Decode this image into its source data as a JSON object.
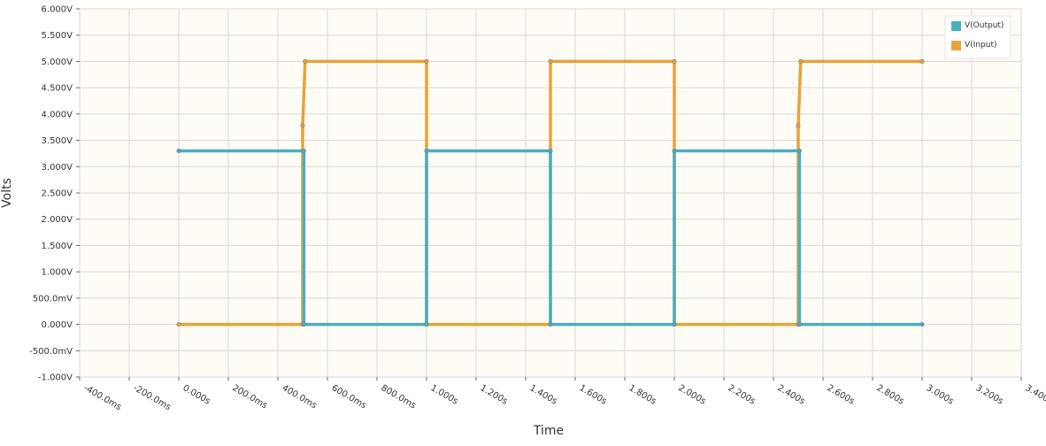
{
  "chart_data": {
    "type": "line",
    "xlabel": "Time",
    "ylabel": "Volts",
    "x_unit": "s",
    "ylim": [
      -1.0,
      6.0
    ],
    "xlim": [
      -0.4,
      3.4
    ],
    "grid": true,
    "legend_position": "top-right",
    "y_ticks": [
      {
        "value": 6.0,
        "label": "6.000V"
      },
      {
        "value": 5.5,
        "label": "5.500V"
      },
      {
        "value": 5.0,
        "label": "5.000V"
      },
      {
        "value": 4.5,
        "label": "4.500V"
      },
      {
        "value": 4.0,
        "label": "4.000V"
      },
      {
        "value": 3.5,
        "label": "3.500V"
      },
      {
        "value": 3.0,
        "label": "3.000V"
      },
      {
        "value": 2.5,
        "label": "2.500V"
      },
      {
        "value": 2.0,
        "label": "2.000V"
      },
      {
        "value": 1.5,
        "label": "1.500V"
      },
      {
        "value": 1.0,
        "label": "1.000V"
      },
      {
        "value": 0.5,
        "label": "500.0mV"
      },
      {
        "value": 0.0,
        "label": "0.000V"
      },
      {
        "value": -0.5,
        "label": "-500.0mV"
      },
      {
        "value": -1.0,
        "label": "-1.000V"
      }
    ],
    "x_ticks": [
      {
        "value": -0.4,
        "label": "-400.0ms"
      },
      {
        "value": -0.2,
        "label": "-200.0ms"
      },
      {
        "value": 0.0,
        "label": "0.000s"
      },
      {
        "value": 0.2,
        "label": "200.0ms"
      },
      {
        "value": 0.4,
        "label": "400.0ms"
      },
      {
        "value": 0.6,
        "label": "600.0ms"
      },
      {
        "value": 0.8,
        "label": "800.0ms"
      },
      {
        "value": 1.0,
        "label": "1.000s"
      },
      {
        "value": 1.2,
        "label": "1.200s"
      },
      {
        "value": 1.4,
        "label": "1.400s"
      },
      {
        "value": 1.6,
        "label": "1.600s"
      },
      {
        "value": 1.8,
        "label": "1.800s"
      },
      {
        "value": 2.0,
        "label": "2.000s"
      },
      {
        "value": 2.2,
        "label": "2.200s"
      },
      {
        "value": 2.4,
        "label": "2.400s"
      },
      {
        "value": 2.6,
        "label": "2.600s"
      },
      {
        "value": 2.8,
        "label": "2.800s"
      },
      {
        "value": 3.0,
        "label": "3.000s"
      },
      {
        "value": 3.2,
        "label": "3.200s"
      },
      {
        "value": 3.4,
        "label": "3.400s"
      }
    ],
    "series": [
      {
        "name": "V(Input)",
        "color": "#e8a33a",
        "points": [
          [
            0.0,
            0.0
          ],
          [
            0.5,
            0.0
          ],
          [
            0.5,
            3.78
          ],
          [
            0.51,
            5.0
          ],
          [
            1.0,
            5.0
          ],
          [
            1.0,
            0.0
          ],
          [
            1.5,
            0.0
          ],
          [
            1.5,
            5.0
          ],
          [
            2.0,
            5.0
          ],
          [
            2.0,
            0.0
          ],
          [
            2.5,
            0.0
          ],
          [
            2.5,
            3.78
          ],
          [
            2.51,
            5.0
          ],
          [
            3.0,
            5.0
          ]
        ]
      },
      {
        "name": "V(Output)",
        "color": "#4aaec0",
        "points": [
          [
            0.0,
            3.3
          ],
          [
            0.505,
            3.3
          ],
          [
            0.505,
            0.0
          ],
          [
            1.0,
            0.0
          ],
          [
            1.0,
            3.3
          ],
          [
            1.5,
            3.3
          ],
          [
            1.5,
            0.0
          ],
          [
            2.0,
            0.0
          ],
          [
            2.0,
            3.3
          ],
          [
            2.505,
            3.3
          ],
          [
            2.505,
            0.0
          ],
          [
            3.0,
            0.0
          ]
        ]
      }
    ],
    "legend": [
      {
        "name": "V(Output)",
        "color": "#4aaec0"
      },
      {
        "name": "V(Input)",
        "color": "#e8a33a"
      }
    ]
  }
}
